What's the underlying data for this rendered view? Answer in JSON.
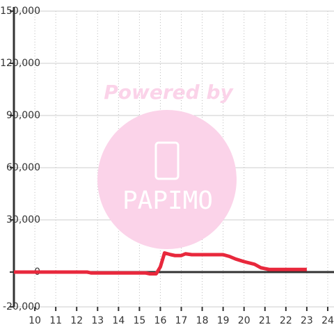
{
  "chart_data": {
    "type": "line",
    "x": [
      9,
      12.5,
      12.7,
      15.3,
      15.5,
      15.8,
      16.0,
      16.2,
      16.5,
      16.7,
      17.0,
      17.2,
      17.5,
      18,
      19,
      19.3,
      19.6,
      20,
      20.5,
      20.8,
      21.2,
      22,
      23
    ],
    "series": [
      {
        "color": "#e8283c",
        "values": [
          0,
          0,
          -500,
          -500,
          -1000,
          -1000,
          3000,
          11000,
          10000,
          9500,
          9500,
          10500,
          10000,
          10000,
          10000,
          9000,
          7500,
          6000,
          4500,
          2500,
          1500,
          1500,
          1500
        ]
      }
    ],
    "xlim": [
      9,
      24.3
    ],
    "xticks": [
      10,
      11,
      12,
      13,
      14,
      15,
      16,
      17,
      18,
      19,
      20,
      21,
      22,
      23,
      24
    ],
    "ylim": [
      -20000,
      150000
    ],
    "yticks": [
      {
        "value": -20000,
        "label": "-20,000"
      },
      0,
      {
        "value": 30000,
        "label": "30,000"
      },
      {
        "value": 60000,
        "label": "60,000"
      },
      {
        "value": 90000,
        "label": "90,000"
      },
      {
        "value": 120000,
        "label": "120,000"
      },
      {
        "value": 150000,
        "label": "150,000"
      }
    ],
    "grid": true,
    "watermark": {
      "line1": "Powered by",
      "line2": "PAPIMO"
    }
  }
}
